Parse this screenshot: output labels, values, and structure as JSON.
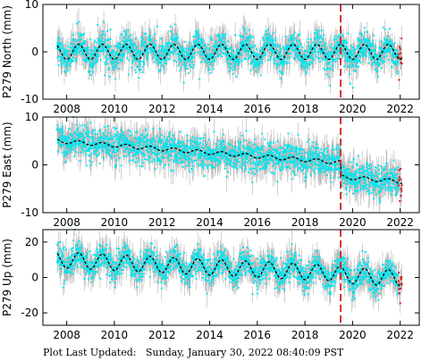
{
  "footer": {
    "label": "Plot Last Updated:",
    "datetime": "Sunday, January 30, 2022 08:40:09 PST"
  },
  "colors": {
    "raw_points": "#00e5ee",
    "error_bars": "#b3b3b3",
    "model_fit": "#000000",
    "recent_points": "#dd1111",
    "event_line": "#cc2222"
  },
  "chart_data": [
    {
      "type": "scatter",
      "ylabel": "P279 North (mm)",
      "xlim": [
        2007.0,
        2022.8
      ],
      "ylim": [
        -10,
        10
      ],
      "xticks": [
        2008,
        2010,
        2012,
        2014,
        2016,
        2018,
        2020,
        2022
      ],
      "yticks": [
        -10,
        0,
        10
      ],
      "event_line_x": 2019.5,
      "trend": {
        "start": 0.0,
        "slope": 0.0,
        "seasonal_amplitude": 1.6,
        "offset_at_event": 0.0
      },
      "scatter_sd": 1.8,
      "errorbar_half": 2.2,
      "data_end": 2022.08,
      "recent_start": 2021.92,
      "legend": "none",
      "grid": false
    },
    {
      "type": "scatter",
      "ylabel": "P279 East (mm)",
      "xlim": [
        2007.0,
        2022.8
      ],
      "ylim": [
        -10,
        10
      ],
      "xticks": [
        2008,
        2010,
        2012,
        2014,
        2016,
        2018,
        2020,
        2022
      ],
      "yticks": [
        -10,
        0,
        10
      ],
      "event_line_x": 2019.5,
      "trend": {
        "start": 5.0,
        "slope": -0.38,
        "seasonal_amplitude": 0.4,
        "offset_at_event": -3.0
      },
      "scatter_sd": 1.8,
      "errorbar_half": 2.4,
      "data_end": 2022.08,
      "recent_start": 2021.92,
      "legend": "none",
      "grid": false
    },
    {
      "type": "scatter",
      "ylabel": "P279 Up (mm)",
      "xlim": [
        2007.0,
        2022.8
      ],
      "ylim": [
        -27,
        27
      ],
      "xticks": [
        2008,
        2010,
        2012,
        2014,
        2016,
        2018,
        2020,
        2022
      ],
      "yticks": [
        -20,
        0,
        20
      ],
      "event_line_x": 2019.5,
      "trend": {
        "start": 10.0,
        "slope": -0.65,
        "seasonal_amplitude": 4.5,
        "offset_at_event": -1.0
      },
      "scatter_sd": 4.2,
      "errorbar_half": 6.0,
      "data_end": 2022.08,
      "recent_start": 2021.92,
      "legend": "none",
      "grid": false
    }
  ]
}
